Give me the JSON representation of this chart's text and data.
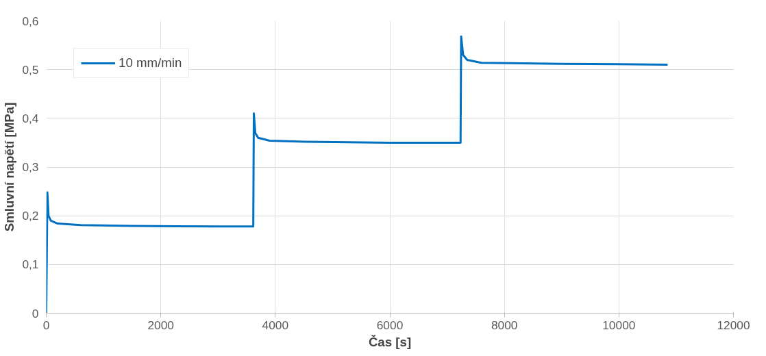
{
  "chart_data": {
    "type": "line",
    "xlabel": "Čas [s]",
    "ylabel": "Smluvní napětí [MPa]",
    "xlim": [
      0,
      12000
    ],
    "xticks": [
      0,
      2000,
      4000,
      6000,
      8000,
      10000,
      12000
    ],
    "ylim": [
      0,
      0.6
    ],
    "yticks": [
      0,
      {
        "value": 0.1,
        "label": "0,1"
      },
      {
        "value": 0.2,
        "label": "0,2"
      },
      {
        "value": 0.3,
        "label": "0,3"
      },
      {
        "value": 0.4,
        "label": "0,4"
      },
      {
        "value": 0.5,
        "label": "0,5"
      },
      {
        "value": 0.6,
        "label": "0,6"
      }
    ],
    "grid": true,
    "legend": "top left",
    "marker": "none",
    "line_style": "solid",
    "series": [
      {
        "name": "10 mm/min",
        "color": "#0070c0",
        "x": [
          0,
          20,
          40,
          80,
          200,
          600,
          1500,
          3000,
          3615,
          3625,
          3650,
          3700,
          3900,
          4500,
          6000,
          7235,
          7245,
          7280,
          7350,
          7600,
          9000,
          10000,
          10850
        ],
        "values": [
          0,
          0.248,
          0.2,
          0.19,
          0.184,
          0.181,
          0.179,
          0.178,
          0.178,
          0.41,
          0.37,
          0.36,
          0.354,
          0.352,
          0.35,
          0.35,
          0.568,
          0.53,
          0.52,
          0.514,
          0.512,
          0.511,
          0.51
        ]
      }
    ]
  }
}
